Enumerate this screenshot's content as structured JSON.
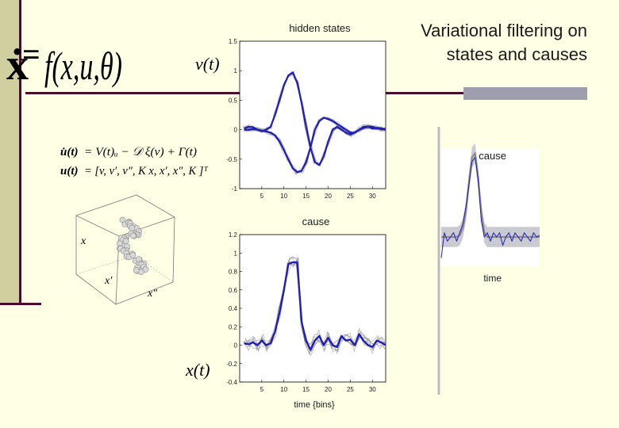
{
  "slide": {
    "title_line1": "Variational filtering on",
    "title_line2": "states and causes",
    "colors": {
      "background": "#ffffe6",
      "left_bar": "#cfcf9f",
      "accent_dark": "#4a0e2a",
      "title_bar": "#9e9eae",
      "trace_blue": "#1f1fb8",
      "trace_grey": "#8c8c8c",
      "band": "#c4c4cc"
    }
  },
  "equations": {
    "top_lhs": "ẋ",
    "top_eq": "=",
    "top_rhs": "f(x,u,θ)",
    "v_label": "v(t)",
    "eq1_lhs": "u̇(t)",
    "eq1_rhs": "= V(t)ᵤ − 𝒟 ξ(v) + Γ(t)",
    "eq2_lhs": "u(t)",
    "eq2_rhs": "= [v, v′, v″, K  x, x′, x″, K ]ᵀ",
    "x_label": "x(t)",
    "cloud_x": "x",
    "cloud_xp": "x′",
    "cloud_xpp": "x″"
  },
  "chart_data": [
    {
      "type": "line",
      "title": "hidden states",
      "xlabel": "",
      "ylabel": "",
      "xlim": [
        0,
        33
      ],
      "ylim": [
        -1,
        1.5
      ],
      "xticks": [
        5,
        10,
        15,
        20,
        25,
        30
      ],
      "yticks": [
        1.5,
        1,
        0.5,
        0,
        -0.5,
        -1
      ],
      "ytick_labels": [
        "1.5",
        "1",
        "0.5",
        "0",
        "-0.5",
        "-1"
      ],
      "x": [
        1,
        2,
        3,
        4,
        5,
        6,
        7,
        8,
        9,
        10,
        11,
        12,
        13,
        14,
        15,
        16,
        17,
        18,
        19,
        20,
        21,
        22,
        23,
        24,
        25,
        26,
        27,
        28,
        29,
        30,
        31,
        32,
        33
      ],
      "series": [
        {
          "values": [
            0.02,
            0.05,
            0.04,
            0.0,
            -0.03,
            0.0,
            0.05,
            0.25,
            0.5,
            0.75,
            0.92,
            0.97,
            0.8,
            0.45,
            0.05,
            -0.3,
            -0.55,
            -0.6,
            -0.45,
            -0.2,
            0.0,
            0.05,
            0.0,
            -0.05,
            -0.08,
            -0.05,
            0.0,
            0.05,
            0.05,
            0.02,
            0.02,
            0.01,
            0.0
          ]
        },
        {
          "values": [
            0.0,
            0.0,
            0.01,
            0.0,
            -0.02,
            -0.03,
            -0.05,
            -0.1,
            -0.2,
            -0.35,
            -0.5,
            -0.65,
            -0.72,
            -0.7,
            -0.55,
            -0.3,
            0.0,
            0.15,
            0.2,
            0.18,
            0.15,
            0.1,
            0.05,
            0.0,
            -0.05,
            -0.05,
            0.0,
            0.03,
            0.05,
            0.05,
            0.03,
            0.02,
            0.01
          ]
        }
      ]
    },
    {
      "type": "line",
      "title": "cause",
      "xlabel": "time {bins}",
      "ylabel": "",
      "xlim": [
        0,
        33
      ],
      "ylim": [
        -0.4,
        1.2
      ],
      "xticks": [
        5,
        10,
        15,
        20,
        25,
        30
      ],
      "yticks": [
        1.2,
        1,
        0.8,
        0.6,
        0.4,
        0.2,
        0,
        -0.2,
        -0.4
      ],
      "ytick_labels": [
        "1.2",
        "1",
        "0.8",
        "0.6",
        "0.4",
        "0.2",
        "0",
        "-0.2",
        "-0.4"
      ],
      "x": [
        1,
        2,
        3,
        4,
        5,
        6,
        7,
        8,
        9,
        10,
        11,
        12,
        13,
        14,
        15,
        16,
        17,
        18,
        19,
        20,
        21,
        22,
        23,
        24,
        25,
        26,
        27,
        28,
        29,
        30,
        31,
        32,
        33
      ],
      "series": [
        {
          "values": [
            0.02,
            0.01,
            0.03,
            0.0,
            0.05,
            0.0,
            0.02,
            0.15,
            0.35,
            0.6,
            0.88,
            0.9,
            0.9,
            0.25,
            0.05,
            -0.05,
            0.05,
            0.1,
            0.0,
            0.08,
            0.0,
            -0.02,
            0.1,
            0.05,
            0.06,
            0.0,
            0.12,
            0.05,
            0.0,
            -0.02,
            0.05,
            0.03,
            0.0
          ]
        }
      ]
    },
    {
      "type": "line",
      "title": "cause",
      "xlabel": "time",
      "ylabel": "",
      "x": [
        1,
        2,
        3,
        4,
        5,
        6,
        7,
        8,
        9,
        10,
        11,
        12,
        13,
        14,
        15,
        16,
        17,
        18,
        19,
        20,
        21,
        22,
        23,
        24,
        25,
        26,
        27,
        28,
        29,
        30,
        31,
        32,
        33
      ],
      "series": [
        {
          "values": [
            0,
            0,
            0,
            0,
            0,
            0,
            0.02,
            0.1,
            0.3,
            0.65,
            0.95,
            1.0,
            0.7,
            0.3,
            0.05,
            0,
            0,
            0,
            0,
            0,
            0,
            0,
            0,
            0,
            0,
            0,
            0,
            0,
            0,
            0,
            0,
            0,
            0
          ]
        },
        {
          "values": [
            -0.25,
            0.05,
            -0.05,
            0.0,
            0.05,
            -0.05,
            0.05,
            0.15,
            0.35,
            0.62,
            0.9,
            0.95,
            0.7,
            0.2,
            0.0,
            0.05,
            -0.05,
            0.05,
            0.0,
            0.05,
            -0.1,
            0.0,
            0.05,
            -0.05,
            0.05,
            0.0,
            -0.05,
            0.05,
            0.0,
            -0.05,
            0.05,
            0.0,
            0.02
          ]
        }
      ]
    }
  ]
}
